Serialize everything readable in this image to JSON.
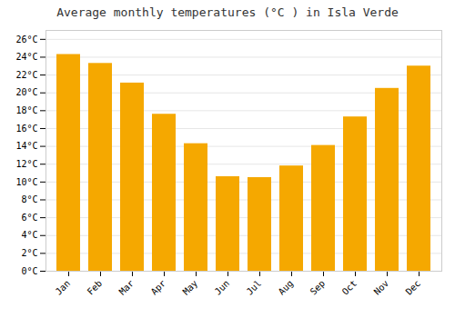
{
  "chart_data": {
    "type": "bar",
    "title": "Average monthly temperatures (°C ) in Isla Verde",
    "categories": [
      "Jan",
      "Feb",
      "Mar",
      "Apr",
      "May",
      "Jun",
      "Jul",
      "Aug",
      "Sep",
      "Oct",
      "Nov",
      "Dec"
    ],
    "values": [
      24.3,
      23.3,
      21.1,
      17.6,
      14.3,
      10.6,
      10.5,
      11.8,
      14.1,
      17.3,
      20.5,
      23.0
    ],
    "color": "#F5A800",
    "ylim": [
      0,
      27
    ],
    "yticks": [
      {
        "value": 0,
        "label": "0°C"
      },
      {
        "value": 2,
        "label": "2°C"
      },
      {
        "value": 4,
        "label": "4°C"
      },
      {
        "value": 6,
        "label": "6°C"
      },
      {
        "value": 8,
        "label": "8°C"
      },
      {
        "value": 10,
        "label": "10°C"
      },
      {
        "value": 12,
        "label": "12°C"
      },
      {
        "value": 14,
        "label": "14°C"
      },
      {
        "value": 16,
        "label": "16°C"
      },
      {
        "value": 18,
        "label": "18°C"
      },
      {
        "value": 20,
        "label": "20°C"
      },
      {
        "value": 22,
        "label": "22°C"
      },
      {
        "value": 24,
        "label": "24°C"
      },
      {
        "value": 26,
        "label": "26°C"
      }
    ],
    "grid": true
  }
}
